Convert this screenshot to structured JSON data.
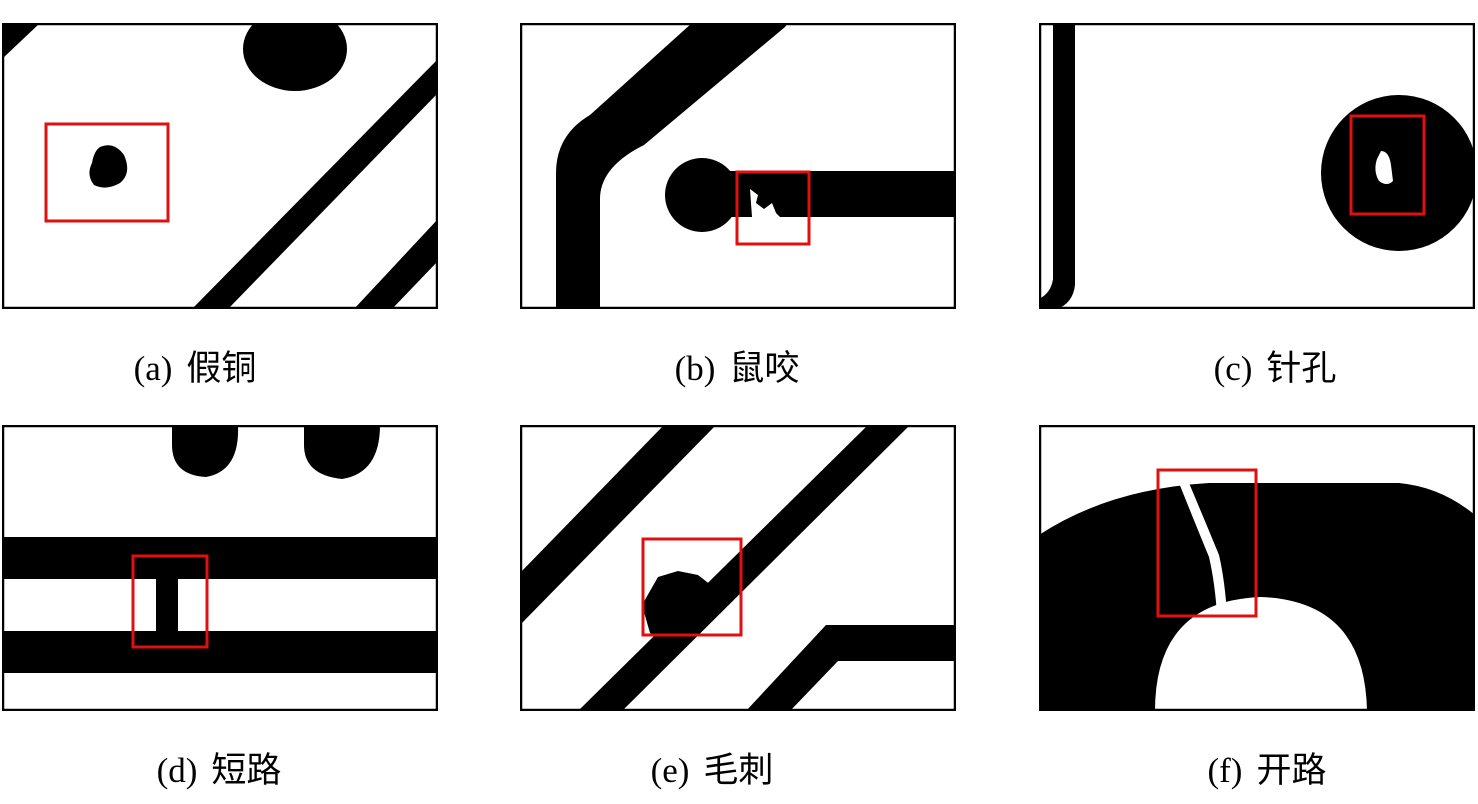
{
  "panels": [
    {
      "label": "(a)",
      "name": "假铜"
    },
    {
      "label": "(b)",
      "name": "鼠咬"
    },
    {
      "label": "(c)",
      "name": "针孔"
    },
    {
      "label": "(d)",
      "name": "短路"
    },
    {
      "label": "(e)",
      "name": "毛刺"
    },
    {
      "label": "(f)",
      "name": "开路"
    }
  ],
  "colors": {
    "highlight": "#e01010",
    "copper": "#000000",
    "background": "#ffffff"
  }
}
